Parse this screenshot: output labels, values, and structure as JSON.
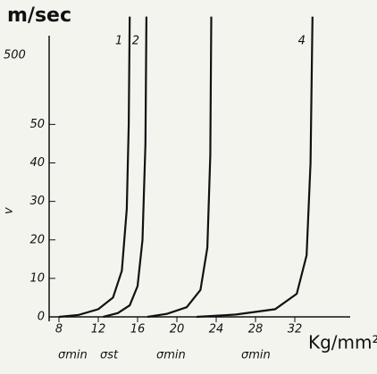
{
  "chart_data": {
    "type": "line",
    "y_unit_label": "m/sec",
    "y_axis_label": "v",
    "x_axis_label": "Kg/mm²",
    "y_top_label": "500",
    "xlim": [
      6,
      39
    ],
    "ylim": [
      0,
      80
    ],
    "xticks": [
      8,
      12,
      16,
      20,
      24,
      28,
      32
    ],
    "yticks": [
      0,
      10,
      20,
      30,
      40,
      50
    ],
    "color": "#111111",
    "series": [
      {
        "name": "1",
        "x": [
          8,
          10,
          12,
          13.5,
          14.4,
          14.9,
          15.1,
          15.2
        ],
        "values": [
          0,
          0.5,
          2,
          5,
          12,
          28,
          50,
          78
        ]
      },
      {
        "name": "2",
        "x": [
          12.5,
          14,
          15.2,
          16,
          16.5,
          16.8,
          16.9
        ],
        "values": [
          0,
          1,
          3,
          8,
          20,
          45,
          78
        ]
      },
      {
        "x": [
          17,
          19,
          21,
          22.4,
          23.1,
          23.4,
          23.5
        ],
        "values": [
          0,
          0.8,
          2.5,
          7,
          18,
          42,
          78
        ]
      },
      {
        "name": "4",
        "x": [
          22,
          26,
          30,
          32.2,
          33.2,
          33.6,
          33.8
        ],
        "values": [
          0,
          0.6,
          2,
          6,
          16,
          40,
          78
        ]
      }
    ],
    "annotations": [
      "σmin",
      "σst",
      "σmin",
      "σmin"
    ]
  }
}
